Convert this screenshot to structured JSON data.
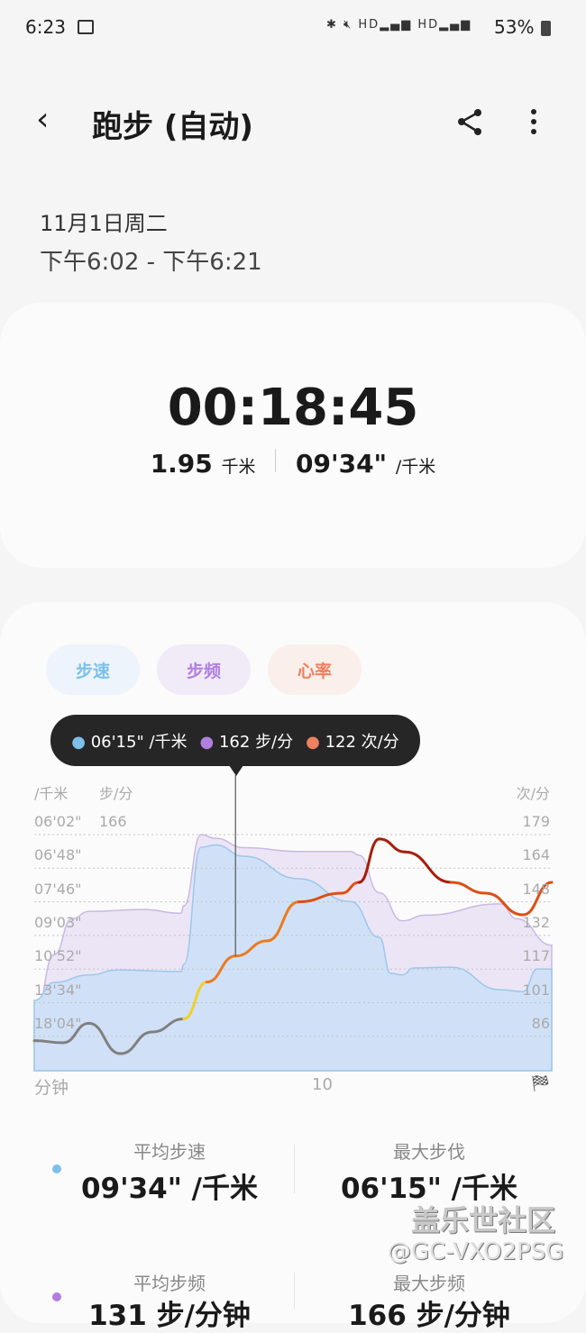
{
  "status_bar": {
    "time": "6:23",
    "battery": "53%",
    "icons": [
      "image-icon",
      "bluetooth-icon",
      "mute-icon",
      "hd-icon",
      "5g-signal-icon",
      "hd-icon",
      "5g-signal-icon",
      "battery-icon"
    ],
    "net1": "HD",
    "net2": "HD"
  },
  "header": {
    "title": "跑步 (自动)",
    "back_icon": "back-arrow-icon",
    "share_icon": "share-icon",
    "more_icon": "more-vert-icon"
  },
  "session": {
    "date": "11月1日周二",
    "time_range": "下午6:02 - 下午6:21"
  },
  "summary": {
    "duration": "00:18:45",
    "distance": "1.95",
    "distance_unit": "千米",
    "pace": "09'34\"",
    "pace_unit": "/千米"
  },
  "tabs": [
    {
      "label": "步速",
      "color": "#7cc0ea",
      "bg": "#eef4fb"
    },
    {
      "label": "步频",
      "color": "#b07fe0",
      "bg": "#f1ebf8"
    },
    {
      "label": "心率",
      "color": "#f0805f",
      "bg": "#faefeb"
    }
  ],
  "tooltip": {
    "pace": "06'15\" /千米",
    "cadence": "162 步/分",
    "heart_rate": "122 次/分",
    "colors": [
      "#7cc0ea",
      "#b07fe0",
      "#f0805f"
    ]
  },
  "chart_data": {
    "type": "area",
    "x_label": "分钟",
    "x_ticks": [
      10
    ],
    "x_range": [
      0,
      18
    ],
    "finish_icon": "checkered-flag-icon",
    "pace_axis": {
      "unit": "/千米",
      "ticks": [
        "06'02\"",
        "06'48\"",
        "07'46\"",
        "09'03\"",
        "10'52\"",
        "13'34\"",
        "18'04\""
      ]
    },
    "cadence_axis": {
      "unit": "步/分",
      "ticks": [
        166
      ]
    },
    "hr_axis": {
      "unit": "次/分",
      "ticks": [
        179,
        164,
        148,
        132,
        117,
        101,
        86
      ]
    },
    "grid": true,
    "cursor_minute": 7.0,
    "pace_series": {
      "x": [
        0,
        0.7,
        1.9,
        2.9,
        5.1,
        5.2,
        5.8,
        6.3,
        7.3,
        9.2,
        11.0,
        12.0,
        12.4,
        12.8,
        13.2,
        14.5,
        16.2,
        17.0,
        17.5,
        18.0
      ],
      "pace": [
        "13'20\"",
        "11'47\"",
        "11'15\"",
        "10'55\"",
        "11'01\"",
        "10'34\"",
        "06'18\"",
        "06'15\"",
        "06'30\"",
        "07'04\"",
        "07'45\"",
        "09'08\"",
        "11'08\"",
        "11'15\"",
        "10'47\"",
        "10'44\"",
        "12'22\"",
        "12'32\"",
        "10'51\"",
        "10'51\""
      ],
      "color": "#cfe0f7"
    },
    "cadence_series": {
      "x": [
        0,
        0.7,
        1.3,
        1.9,
        3.8,
        5.1,
        5.2,
        5.8,
        6.3,
        7.3,
        9.2,
        11.0,
        11.3,
        12.0,
        12.8,
        13.6,
        16.2,
        16.8,
        18.0
      ],
      "values": [
        68,
        102,
        121,
        125,
        126,
        124,
        128,
        166,
        164,
        159,
        157,
        157,
        155,
        135,
        120,
        123,
        129,
        121,
        107
      ],
      "color": "#ece5f6"
    },
    "hr_series": {
      "x": [
        0,
        1.0,
        1.9,
        3.0,
        4.1,
        5.2,
        6.0,
        7.0,
        8.1,
        9.2,
        10.7,
        11.3,
        12.0,
        12.9,
        14.5,
        15.7,
        17.0,
        18.0
      ],
      "values": [
        84,
        83,
        92,
        78,
        88,
        94,
        111,
        123,
        130,
        148,
        152,
        157,
        177,
        171,
        157,
        152,
        142,
        157
      ]
    }
  },
  "stats": [
    {
      "label": "平均步速",
      "value": "09'34\" /千米",
      "dot": "#7cc0ea"
    },
    {
      "label": "最大步伐",
      "value": "06'15\" /千米"
    },
    {
      "label": "平均步频",
      "value": "131 步/分钟",
      "dot": "#b07fe0"
    },
    {
      "label": "最大步频",
      "value": "166 步/分钟"
    }
  ],
  "watermark": {
    "line1": "盖乐世社区",
    "line2": "@GC-VXO2PSG"
  }
}
